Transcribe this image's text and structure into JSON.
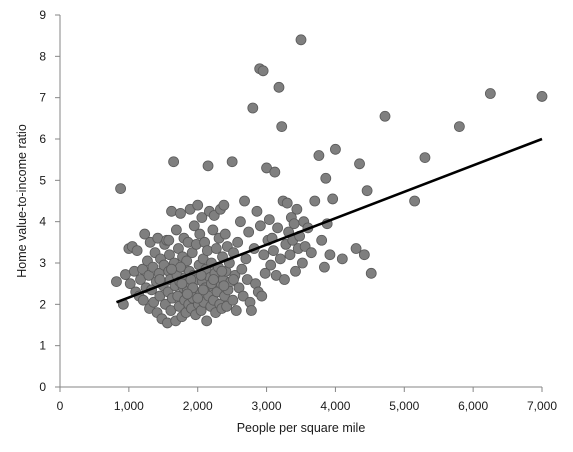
{
  "chart_data": {
    "type": "scatter",
    "title": "",
    "xlabel": "People per square mile",
    "ylabel": "Home value-to-income ratio",
    "xlim": [
      0,
      7000
    ],
    "ylim": [
      0,
      9
    ],
    "x_ticks": [
      0,
      1000,
      2000,
      3000,
      4000,
      5000,
      6000,
      7000
    ],
    "x_tick_labels": [
      "0",
      "1,000",
      "2,000",
      "3,000",
      "4,000",
      "5,000",
      "6,000",
      "7,000"
    ],
    "y_ticks": [
      0,
      1,
      2,
      3,
      4,
      5,
      6,
      7,
      8,
      9
    ],
    "y_tick_labels": [
      "0",
      "1",
      "2",
      "3",
      "4",
      "5",
      "6",
      "7",
      "8",
      "9"
    ],
    "grid": false,
    "legend": "none",
    "colors": {
      "points": "#7f7f7f",
      "point_edge": "#5a5a5a",
      "trend": "#000000",
      "axes": "#868686"
    },
    "trendline": {
      "x": [
        820,
        7000
      ],
      "y": [
        2.05,
        6.0
      ]
    },
    "points": [
      [
        880,
        4.8
      ],
      [
        820,
        2.55
      ],
      [
        920,
        2.0
      ],
      [
        950,
        2.72
      ],
      [
        1000,
        3.35
      ],
      [
        1020,
        2.5
      ],
      [
        1050,
        3.4
      ],
      [
        1080,
        2.8
      ],
      [
        1100,
        2.3
      ],
      [
        1120,
        3.3
      ],
      [
        1150,
        2.2
      ],
      [
        1170,
        2.6
      ],
      [
        1200,
        2.85
      ],
      [
        1210,
        2.1
      ],
      [
        1230,
        3.7
      ],
      [
        1250,
        2.4
      ],
      [
        1270,
        3.05
      ],
      [
        1290,
        2.7
      ],
      [
        1300,
        1.9
      ],
      [
        1310,
        3.5
      ],
      [
        1330,
        2.35
      ],
      [
        1350,
        2.9
      ],
      [
        1360,
        2.05
      ],
      [
        1380,
        3.25
      ],
      [
        1400,
        2.55
      ],
      [
        1410,
        1.8
      ],
      [
        1420,
        3.6
      ],
      [
        1440,
        2.75
      ],
      [
        1450,
        2.2
      ],
      [
        1460,
        3.1
      ],
      [
        1480,
        1.65
      ],
      [
        1500,
        2.45
      ],
      [
        1510,
        2.95
      ],
      [
        1520,
        3.45
      ],
      [
        1530,
        2.0
      ],
      [
        1550,
        3.55
      ],
      [
        1560,
        1.55
      ],
      [
        1570,
        2.3
      ],
      [
        1580,
        2.8
      ],
      [
        1590,
        3.2
      ],
      [
        1600,
        2.6
      ],
      [
        1610,
        1.85
      ],
      [
        1620,
        4.25
      ],
      [
        1630,
        2.15
      ],
      [
        1650,
        5.45
      ],
      [
        1660,
        3.0
      ],
      [
        1670,
        2.45
      ],
      [
        1680,
        1.6
      ],
      [
        1690,
        3.8
      ],
      [
        1700,
        2.7
      ],
      [
        1710,
        2.2
      ],
      [
        1720,
        3.35
      ],
      [
        1730,
        1.95
      ],
      [
        1740,
        2.55
      ],
      [
        1750,
        4.2
      ],
      [
        1760,
        2.9
      ],
      [
        1770,
        1.7
      ],
      [
        1780,
        3.15
      ],
      [
        1790,
        2.4
      ],
      [
        1800,
        3.6
      ],
      [
        1810,
        2.1
      ],
      [
        1820,
        2.65
      ],
      [
        1830,
        1.8
      ],
      [
        1840,
        3.05
      ],
      [
        1850,
        2.35
      ],
      [
        1860,
        3.5
      ],
      [
        1870,
        2.0
      ],
      [
        1880,
        2.8
      ],
      [
        1890,
        4.3
      ],
      [
        1900,
        2.5
      ],
      [
        1910,
        1.9
      ],
      [
        1920,
        3.25
      ],
      [
        1930,
        2.15
      ],
      [
        1940,
        2.7
      ],
      [
        1950,
        3.9
      ],
      [
        1960,
        2.3
      ],
      [
        1970,
        1.75
      ],
      [
        1980,
        3.45
      ],
      [
        1990,
        2.6
      ],
      [
        2000,
        4.4
      ],
      [
        2010,
        2.0
      ],
      [
        2020,
        2.95
      ],
      [
        2030,
        3.7
      ],
      [
        2040,
        2.25
      ],
      [
        2050,
        1.85
      ],
      [
        2060,
        4.1
      ],
      [
        2070,
        2.55
      ],
      [
        2080,
        3.1
      ],
      [
        2090,
        2.05
      ],
      [
        2100,
        3.5
      ],
      [
        2110,
        2.4
      ],
      [
        2120,
        2.85
      ],
      [
        2130,
        1.6
      ],
      [
        2140,
        3.3
      ],
      [
        2150,
        5.35
      ],
      [
        2160,
        2.2
      ],
      [
        2170,
        4.25
      ],
      [
        2180,
        2.65
      ],
      [
        2190,
        1.95
      ],
      [
        2200,
        3.0
      ],
      [
        2210,
        2.45
      ],
      [
        2220,
        3.8
      ],
      [
        2230,
        2.1
      ],
      [
        2240,
        4.15
      ],
      [
        2250,
        2.75
      ],
      [
        2260,
        1.8
      ],
      [
        2270,
        3.35
      ],
      [
        2280,
        2.3
      ],
      [
        2300,
        2.9
      ],
      [
        2310,
        3.6
      ],
      [
        2320,
        2.0
      ],
      [
        2330,
        4.3
      ],
      [
        2340,
        2.5
      ],
      [
        2350,
        1.9
      ],
      [
        2360,
        3.15
      ],
      [
        2370,
        2.6
      ],
      [
        2380,
        4.4
      ],
      [
        2390,
        2.2
      ],
      [
        2400,
        3.7
      ],
      [
        2410,
        2.8
      ],
      [
        2420,
        1.95
      ],
      [
        2430,
        3.4
      ],
      [
        2440,
        2.35
      ],
      [
        2460,
        3.0
      ],
      [
        2480,
        2.55
      ],
      [
        2500,
        5.45
      ],
      [
        2510,
        2.1
      ],
      [
        2520,
        3.25
      ],
      [
        2540,
        2.7
      ],
      [
        2560,
        1.85
      ],
      [
        2580,
        3.5
      ],
      [
        2600,
        2.4
      ],
      [
        2620,
        4.0
      ],
      [
        2640,
        2.85
      ],
      [
        2660,
        2.2
      ],
      [
        2680,
        4.5
      ],
      [
        2700,
        3.1
      ],
      [
        2720,
        2.6
      ],
      [
        2740,
        3.75
      ],
      [
        2760,
        2.05
      ],
      [
        2780,
        1.85
      ],
      [
        2800,
        6.75
      ],
      [
        2820,
        3.35
      ],
      [
        2840,
        2.5
      ],
      [
        2860,
        4.25
      ],
      [
        2880,
        2.3
      ],
      [
        2900,
        7.7
      ],
      [
        2910,
        3.9
      ],
      [
        2930,
        2.2
      ],
      [
        2950,
        7.65
      ],
      [
        2960,
        3.2
      ],
      [
        2980,
        2.75
      ],
      [
        3000,
        5.3
      ],
      [
        3020,
        3.55
      ],
      [
        3040,
        4.05
      ],
      [
        3060,
        2.95
      ],
      [
        3080,
        3.6
      ],
      [
        3100,
        3.3
      ],
      [
        3120,
        5.2
      ],
      [
        3140,
        2.7
      ],
      [
        3160,
        3.85
      ],
      [
        3180,
        7.25
      ],
      [
        3200,
        3.1
      ],
      [
        3220,
        6.3
      ],
      [
        3240,
        4.5
      ],
      [
        3260,
        2.6
      ],
      [
        3280,
        3.45
      ],
      [
        3300,
        4.45
      ],
      [
        3320,
        3.75
      ],
      [
        3340,
        3.2
      ],
      [
        3360,
        4.1
      ],
      [
        3380,
        3.55
      ],
      [
        3400,
        3.95
      ],
      [
        3420,
        2.8
      ],
      [
        3440,
        4.3
      ],
      [
        3460,
        3.35
      ],
      [
        3480,
        3.65
      ],
      [
        3500,
        8.4
      ],
      [
        3520,
        3.0
      ],
      [
        3540,
        4.0
      ],
      [
        3560,
        3.4
      ],
      [
        3600,
        3.85
      ],
      [
        3650,
        3.25
      ],
      [
        3700,
        4.5
      ],
      [
        3760,
        5.6
      ],
      [
        3800,
        3.55
      ],
      [
        3840,
        2.9
      ],
      [
        3860,
        5.05
      ],
      [
        3880,
        3.95
      ],
      [
        3920,
        3.2
      ],
      [
        3960,
        4.55
      ],
      [
        4000,
        5.75
      ],
      [
        4100,
        3.1
      ],
      [
        4300,
        3.35
      ],
      [
        4350,
        5.4
      ],
      [
        4420,
        3.2
      ],
      [
        4460,
        4.75
      ],
      [
        4520,
        2.75
      ],
      [
        4720,
        6.55
      ],
      [
        5150,
        4.5
      ],
      [
        5300,
        5.55
      ],
      [
        5800,
        6.3
      ],
      [
        6250,
        7.1
      ],
      [
        7000,
        7.03
      ],
      [
        1580,
        3.55
      ],
      [
        1750,
        2.9
      ],
      [
        1900,
        2.6
      ],
      [
        2050,
        2.7
      ],
      [
        2200,
        2.5
      ],
      [
        2350,
        2.8
      ],
      [
        1450,
        2.6
      ],
      [
        1620,
        2.85
      ],
      [
        1770,
        2.5
      ],
      [
        1930,
        2.4
      ],
      [
        2080,
        2.35
      ],
      [
        2230,
        2.6
      ],
      [
        2380,
        2.45
      ],
      [
        2520,
        2.6
      ],
      [
        1850,
        2.25
      ],
      [
        2000,
        2.15
      ]
    ]
  }
}
